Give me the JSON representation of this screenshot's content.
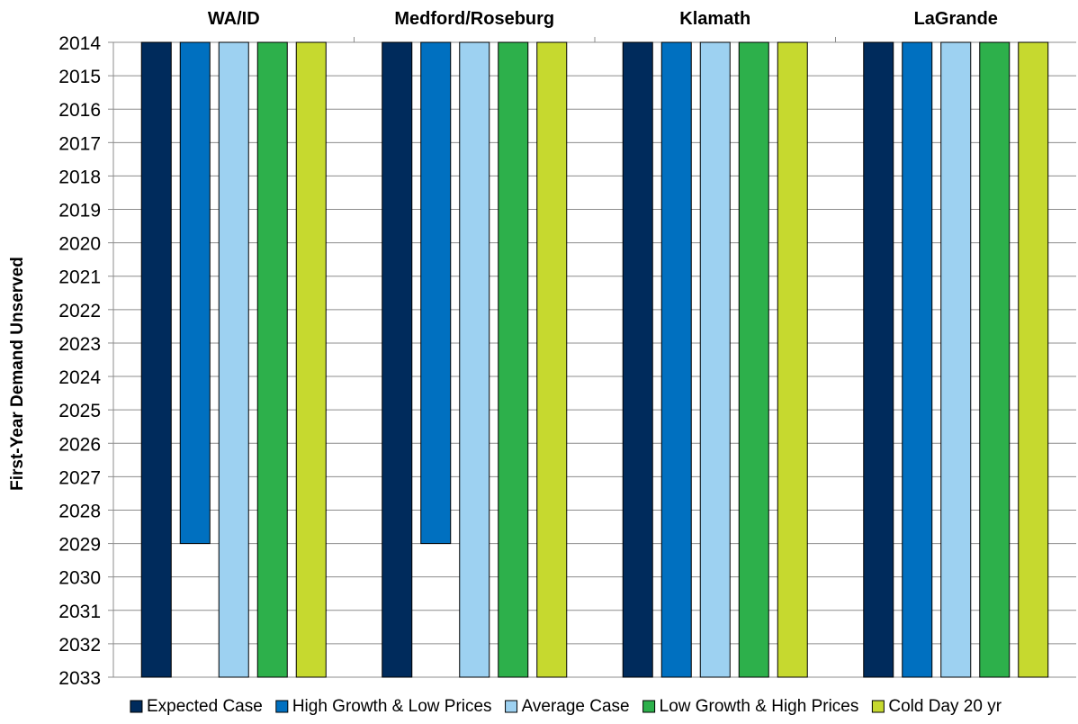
{
  "chart_data": {
    "type": "bar",
    "orientation": "vertical",
    "y_axis_reversed": true,
    "baseline": 2014,
    "categories": [
      "WA/ID",
      "Medford/Roseburg",
      "Klamath",
      "LaGrande"
    ],
    "category_label_position": "top",
    "ylabel": "First-Year Demand Unserved",
    "ylim": [
      2014,
      2033
    ],
    "yticks": [
      "2014",
      "2015",
      "2016",
      "2017",
      "2018",
      "2019",
      "2020",
      "2021",
      "2022",
      "2023",
      "2024",
      "2025",
      "2026",
      "2027",
      "2028",
      "2029",
      "2030",
      "2031",
      "2032",
      "2033"
    ],
    "grid": true,
    "legend_position": "bottom",
    "series": [
      {
        "name": "Expected Case",
        "color": "#002b5c",
        "values": [
          2033,
          2033,
          2033,
          2033
        ]
      },
      {
        "name": "High Growth & Low Prices",
        "color": "#0070c0",
        "values": [
          2029,
          2029,
          2033,
          2033
        ]
      },
      {
        "name": "Average Case",
        "color": "#9dd1f1",
        "values": [
          2033,
          2033,
          2033,
          2033
        ]
      },
      {
        "name": "Low Growth & High Prices",
        "color": "#2db04b",
        "values": [
          2033,
          2033,
          2033,
          2033
        ]
      },
      {
        "name": "Cold Day 20 yr",
        "color": "#c6d92f",
        "values": [
          2033,
          2033,
          2033,
          2033
        ]
      }
    ]
  }
}
